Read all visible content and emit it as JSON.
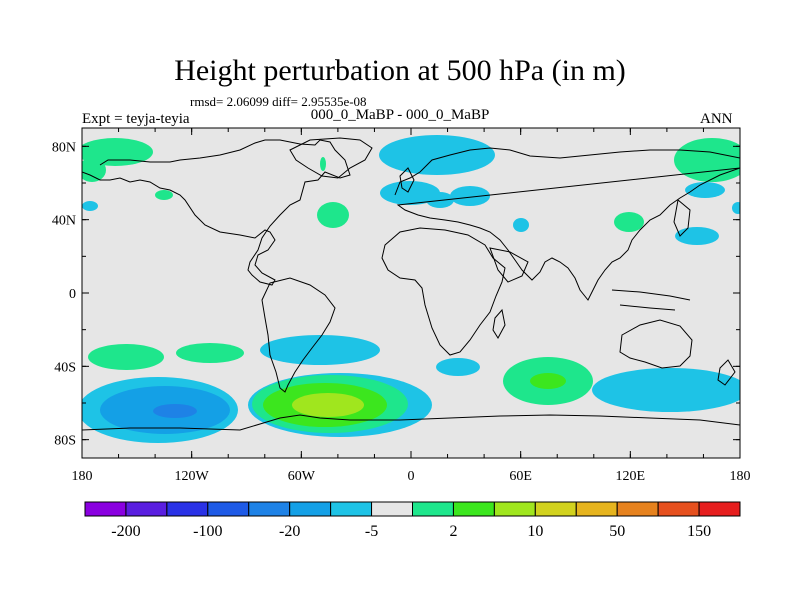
{
  "title": "Height perturbation at 500 hPa (in m)",
  "stats": "rmsd= 2.06099 diff= 2.95535e-08",
  "subtitle": "000_0_MaBP - 000_0_MaBP",
  "experiment": "Expt = teyja-teyia",
  "season": "ANN",
  "map": {
    "lon_ticks": [
      "180",
      "120W",
      "60W",
      "0",
      "60E",
      "120E",
      "180"
    ],
    "lat_ticks": [
      "80N",
      "40N",
      "0",
      "40S",
      "80S"
    ],
    "lat_values": [
      80,
      40,
      0,
      -40,
      -80
    ],
    "lon_values": [
      -180,
      -120,
      -60,
      0,
      60,
      120,
      180
    ]
  },
  "colorbar": {
    "colors": [
      "#8a00e0",
      "#5a1ee0",
      "#2a32e6",
      "#1e5ae6",
      "#1e82e6",
      "#14a0e6",
      "#1ec3e6",
      "#e6e6e6",
      "#1ee68c",
      "#3ce61e",
      "#a0e61e",
      "#d2d21e",
      "#e6b41e",
      "#e6821e",
      "#e6501e",
      "#e61e1e"
    ],
    "labels": [
      "-200",
      "-100",
      "-20",
      "-5",
      "2",
      "10",
      "50",
      "150"
    ]
  },
  "anomaly_colors": {
    "neg1": "#1ec3e6",
    "neg2": "#14a0e6",
    "neg3": "#1e82e6",
    "pos1": "#1ee68c",
    "pos2": "#3ce61e",
    "pos3": "#a0e61e",
    "background": "#e6e6e6"
  }
}
